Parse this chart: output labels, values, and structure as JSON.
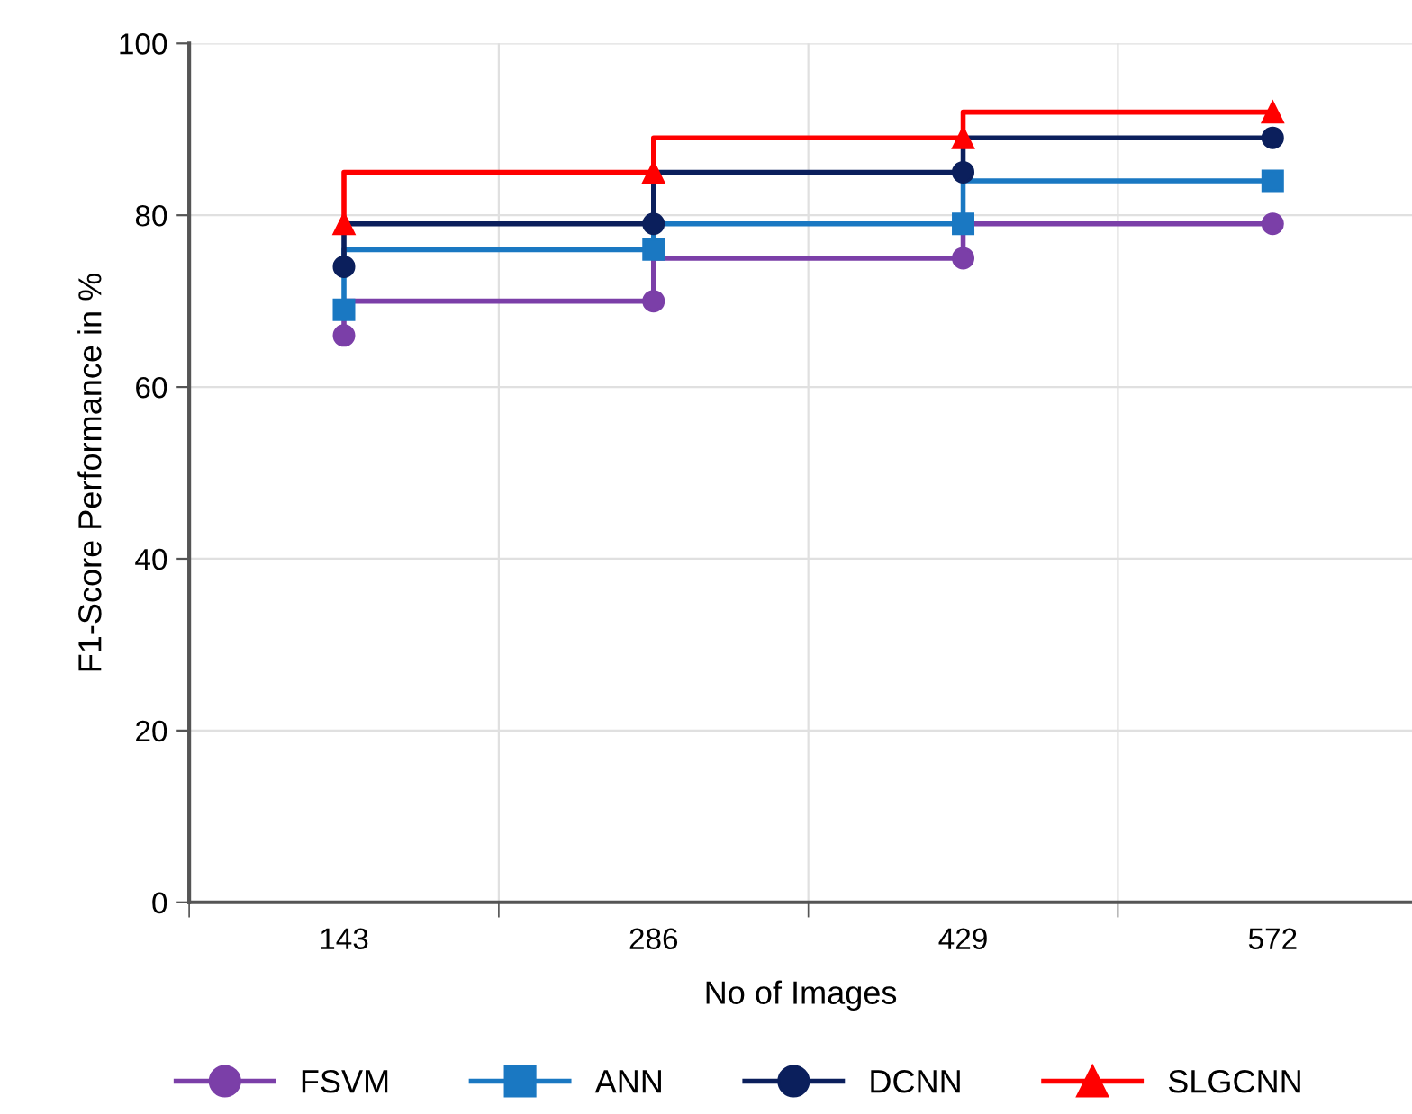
{
  "chart_data": {
    "type": "step",
    "xlabel": "No of Images",
    "ylabel": "F1-Score Performance in %",
    "categories": [
      "143",
      "286",
      "429",
      "572"
    ],
    "ylim": [
      0,
      100
    ],
    "yticks": [
      0,
      20,
      40,
      60,
      80,
      100
    ],
    "grid": true,
    "legend": "bottom",
    "series": [
      {
        "name": "FSVM",
        "color": "#7b3fa8",
        "marker": "circle",
        "values": [
          66,
          70,
          75,
          79
        ]
      },
      {
        "name": "ANN",
        "color": "#1a78c2",
        "marker": "square",
        "values": [
          69,
          76,
          79,
          84
        ]
      },
      {
        "name": "DCNN",
        "color": "#0b1f5c",
        "marker": "circle",
        "values": [
          74,
          79,
          85,
          89
        ]
      },
      {
        "name": "SLGCNN",
        "color": "#ff0000",
        "marker": "triangle",
        "values": [
          79,
          85,
          89,
          92
        ]
      }
    ]
  }
}
